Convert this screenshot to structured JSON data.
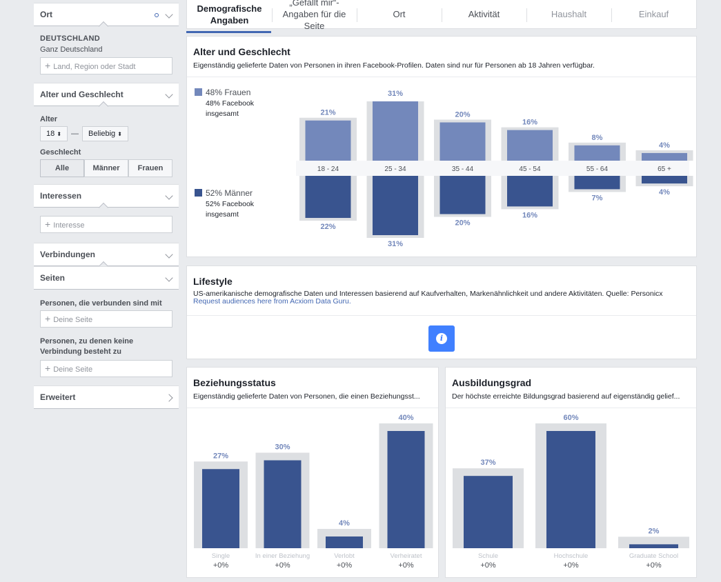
{
  "sidebar": {
    "location": {
      "title": "Ort",
      "country": "DEUTSCHLAND",
      "scope": "Ganz Deutschland",
      "placeholder": "Land, Region oder Stadt"
    },
    "age_gender": {
      "title": "Alter und Geschlecht",
      "age_label": "Alter",
      "age_min": "18",
      "age_max": "Beliebig",
      "dash": "—",
      "gender_label": "Geschlecht",
      "gender_options": [
        "Alle",
        "Männer",
        "Frauen"
      ],
      "gender_selected": "Alle"
    },
    "interests": {
      "title": "Interessen",
      "placeholder": "Interesse"
    },
    "connections": {
      "title": "Verbindungen"
    },
    "pages": {
      "title": "Seiten",
      "connected_label": "Personen, die verbunden sind mit",
      "connected_placeholder": "Deine Seite",
      "not_connected_label": "Personen, zu denen keine Verbindung besteht zu",
      "not_connected_placeholder": "Deine Seite"
    },
    "advanced": {
      "title": "Erweitert"
    }
  },
  "tabs": [
    {
      "label": "Demografische Angaben",
      "active": true
    },
    {
      "label": "„Gefällt mir“-Angaben für die Seite",
      "active": false
    },
    {
      "label": "Ort",
      "active": false
    },
    {
      "label": "Aktivität",
      "active": false
    },
    {
      "label": "Haushalt",
      "active": false,
      "dim": true
    },
    {
      "label": "Einkauf",
      "active": false,
      "dim": true
    }
  ],
  "age_gender_card": {
    "title": "Alter und Geschlecht",
    "subtitle": "Eigenständig gelieferte Daten von Personen in ihren Facebook-Profilen. Daten sind nur für Personen ab 18 Jahren verfügbar.",
    "women": {
      "pct": "48% Frauen",
      "sub": "48% Facebook insgesamt",
      "color": "#7388bb"
    },
    "men": {
      "pct": "52% Männer",
      "sub": "52% Facebook insgesamt",
      "color": "#39548f"
    }
  },
  "lifestyle_card": {
    "title": "Lifestyle",
    "subtitle": "US-amerikanische demografische Daten und Interessen basierend auf Kaufverhalten, Markenähnlichkeit und andere Aktivitäten. Quelle: Personicx",
    "link": "Request audiences here from Acxiom Data Guru.",
    "info_icon": "info-icon"
  },
  "relationship_card": {
    "title": "Beziehungsstatus",
    "subtitle": "Eigenständig gelieferte Daten von Personen, die einen Beziehungsst..."
  },
  "education_card": {
    "title": "Ausbildungsgrad",
    "subtitle": "Der höchste erreichte Bildungsgrad basierend auf eigenständig gelief..."
  },
  "chart_data": [
    {
      "type": "bar",
      "categories": [
        "18 - 24",
        "25 - 34",
        "35 - 44",
        "45 - 54",
        "55 - 64",
        "65 +"
      ],
      "series": [
        {
          "name": "Frauen",
          "values": [
            21,
            31,
            20,
            16,
            8,
            4
          ],
          "labels": [
            "21%",
            "31%",
            "20%",
            "16%",
            "8%",
            "4%"
          ],
          "color": "#7388bb"
        },
        {
          "name": "Männer",
          "values": [
            22,
            31,
            20,
            16,
            7,
            4
          ],
          "labels": [
            "22%",
            "31%",
            "20%",
            "16%",
            "7%",
            "4%"
          ],
          "color": "#39548f"
        }
      ],
      "ylim": [
        0,
        31
      ]
    },
    {
      "type": "bar",
      "categories": [
        "Single",
        "In einer Beziehung",
        "Verlobt",
        "Verheiratet"
      ],
      "values": [
        27,
        30,
        4,
        40
      ],
      "labels": [
        "27%",
        "30%",
        "4%",
        "40%"
      ],
      "changes": [
        "+0%",
        "+0%",
        "+0%",
        "+0%"
      ],
      "ylim": [
        0,
        40
      ],
      "color": "#39548f"
    },
    {
      "type": "bar",
      "categories": [
        "Schule",
        "Hochschule",
        "Graduate School"
      ],
      "values": [
        37,
        60,
        2
      ],
      "labels": [
        "37%",
        "60%",
        "2%"
      ],
      "changes": [
        "+0%",
        "+0%",
        "+0%"
      ],
      "ylim": [
        0,
        60
      ],
      "color": "#39548f"
    }
  ]
}
